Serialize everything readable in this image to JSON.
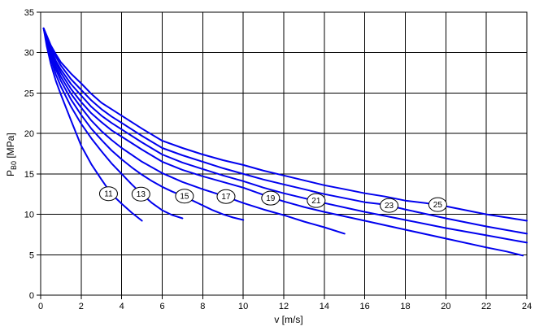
{
  "axes": {
    "x_title": "v [m/s]",
    "y_title_main": "P",
    "y_title_sub": "B0",
    "y_title_unit": "[MPa]"
  },
  "chart_data": {
    "type": "line",
    "title": "",
    "xlabel": "v [m/s]",
    "ylabel": "P_B0 [MPa]",
    "xlim": [
      0,
      24
    ],
    "ylim": [
      0,
      35
    ],
    "xticks": [
      0,
      2,
      4,
      6,
      8,
      10,
      12,
      14,
      16,
      18,
      20,
      22,
      24
    ],
    "yticks": [
      0,
      5,
      10,
      15,
      20,
      25,
      30,
      35
    ],
    "grid": true,
    "legend_position": "none",
    "line_color": "#0000ee",
    "grid_color": "#000000",
    "label_circle_fill": "#ffffff",
    "series": [
      {
        "name": "11",
        "label_pos": [
          3.35,
          12.55
        ],
        "points": [
          [
            0.15,
            33
          ],
          [
            0.3,
            30.8
          ],
          [
            0.5,
            28.6
          ],
          [
            0.75,
            26.5
          ],
          [
            1,
            24.8
          ],
          [
            1.5,
            21.6
          ],
          [
            2,
            18.5
          ],
          [
            2.5,
            16.2
          ],
          [
            3,
            14.3
          ],
          [
            3.5,
            12.5
          ],
          [
            4,
            11.3
          ],
          [
            4.5,
            10.2
          ],
          [
            5,
            9.2
          ]
        ]
      },
      {
        "name": "13",
        "label_pos": [
          4.95,
          12.5
        ],
        "points": [
          [
            0.15,
            33
          ],
          [
            0.3,
            31.2
          ],
          [
            0.5,
            29.2
          ],
          [
            0.75,
            27.3
          ],
          [
            1,
            25.8
          ],
          [
            1.5,
            23.3
          ],
          [
            2,
            21.2
          ],
          [
            2.5,
            19.4
          ],
          [
            3,
            17.8
          ],
          [
            3.5,
            16.3
          ],
          [
            4,
            15.0
          ],
          [
            4.5,
            13.7
          ],
          [
            5,
            12.5
          ],
          [
            5.5,
            11.4
          ],
          [
            6,
            10.5
          ],
          [
            6.5,
            9.9
          ],
          [
            7,
            9.5
          ]
        ]
      },
      {
        "name": "15",
        "label_pos": [
          7.1,
          12.25
        ],
        "points": [
          [
            0.15,
            33
          ],
          [
            0.3,
            31.4
          ],
          [
            0.5,
            29.6
          ],
          [
            0.75,
            27.9
          ],
          [
            1,
            26.5
          ],
          [
            1.5,
            24.2
          ],
          [
            2,
            22.3
          ],
          [
            2.5,
            20.6
          ],
          [
            3,
            19.2
          ],
          [
            3.5,
            17.9
          ],
          [
            4,
            16.8
          ],
          [
            4.5,
            15.8
          ],
          [
            5,
            14.9
          ],
          [
            5.5,
            14.1
          ],
          [
            6,
            13.4
          ],
          [
            6.5,
            12.8
          ],
          [
            7,
            12.3
          ],
          [
            7.5,
            11.7
          ],
          [
            8,
            11.1
          ],
          [
            8.5,
            10.5
          ],
          [
            9,
            10.0
          ],
          [
            9.5,
            9.6
          ],
          [
            10,
            9.3
          ]
        ]
      },
      {
        "name": "17",
        "label_pos": [
          9.15,
          12.2
        ],
        "points": [
          [
            0.15,
            33
          ],
          [
            0.3,
            31.6
          ],
          [
            0.5,
            29.9
          ],
          [
            0.75,
            28.3
          ],
          [
            1,
            27.0
          ],
          [
            1.5,
            24.9
          ],
          [
            2,
            23.2
          ],
          [
            2.5,
            21.6
          ],
          [
            3,
            20.3
          ],
          [
            3.5,
            19.2
          ],
          [
            4,
            18.2
          ],
          [
            5,
            16.5
          ],
          [
            6,
            15.1
          ],
          [
            7,
            14.0
          ],
          [
            8,
            13.1
          ],
          [
            9,
            12.3
          ],
          [
            10,
            11.4
          ],
          [
            11,
            10.6
          ],
          [
            12,
            9.9
          ],
          [
            13,
            9.1
          ],
          [
            14,
            8.4
          ],
          [
            15,
            7.6
          ]
        ]
      },
      {
        "name": "19",
        "label_pos": [
          11.35,
          12.0
        ],
        "points": [
          [
            0.15,
            33
          ],
          [
            0.3,
            31.8
          ],
          [
            0.5,
            30.2
          ],
          [
            0.75,
            28.7
          ],
          [
            1,
            27.5
          ],
          [
            1.5,
            25.5
          ],
          [
            2,
            23.9
          ],
          [
            2.5,
            22.5
          ],
          [
            3,
            21.4
          ],
          [
            3.5,
            20.4
          ],
          [
            4,
            19.6
          ],
          [
            5,
            18.0
          ],
          [
            6,
            16.5
          ],
          [
            7,
            15.5
          ],
          [
            8,
            14.7
          ],
          [
            9,
            14.0
          ],
          [
            10,
            13.3
          ],
          [
            11,
            12.4
          ],
          [
            12,
            11.6
          ],
          [
            13,
            10.9
          ],
          [
            14,
            10.3
          ],
          [
            16,
            9.2
          ],
          [
            18,
            8.1
          ],
          [
            20,
            7.0
          ],
          [
            22,
            5.9
          ],
          [
            23,
            5.4
          ],
          [
            23.8,
            4.9
          ]
        ]
      },
      {
        "name": "21",
        "label_pos": [
          13.6,
          11.7
        ],
        "points": [
          [
            0.15,
            33
          ],
          [
            0.3,
            31.9
          ],
          [
            0.5,
            30.4
          ],
          [
            0.75,
            29.0
          ],
          [
            1,
            27.9
          ],
          [
            1.5,
            26.1
          ],
          [
            2,
            24.7
          ],
          [
            2.5,
            23.3
          ],
          [
            3,
            22.2
          ],
          [
            3.5,
            21.3
          ],
          [
            4,
            20.5
          ],
          [
            5,
            18.9
          ],
          [
            6,
            17.4
          ],
          [
            7,
            16.4
          ],
          [
            8,
            15.6
          ],
          [
            9,
            14.8
          ],
          [
            10,
            14.1
          ],
          [
            11,
            13.3
          ],
          [
            12,
            12.6
          ],
          [
            13,
            12.0
          ],
          [
            14,
            11.4
          ],
          [
            16,
            10.3
          ],
          [
            18,
            9.3
          ],
          [
            20,
            8.3
          ],
          [
            22,
            7.4
          ],
          [
            24,
            6.5
          ]
        ]
      },
      {
        "name": "23",
        "label_pos": [
          17.2,
          11.1
        ],
        "points": [
          [
            0.15,
            33
          ],
          [
            0.3,
            32.0
          ],
          [
            0.5,
            30.7
          ],
          [
            0.75,
            29.5
          ],
          [
            1,
            28.4
          ],
          [
            1.5,
            26.7
          ],
          [
            2,
            25.4
          ],
          [
            2.5,
            24.1
          ],
          [
            3,
            23.0
          ],
          [
            3.5,
            22.1
          ],
          [
            4,
            21.3
          ],
          [
            5,
            19.7
          ],
          [
            6,
            18.2
          ],
          [
            7,
            17.3
          ],
          [
            8,
            16.5
          ],
          [
            9,
            15.7
          ],
          [
            10,
            15.0
          ],
          [
            11,
            14.3
          ],
          [
            12,
            13.7
          ],
          [
            13,
            13.1
          ],
          [
            14,
            12.5
          ],
          [
            15,
            12.0
          ],
          [
            16,
            11.5
          ],
          [
            17,
            11.2
          ],
          [
            18,
            10.6
          ],
          [
            20,
            9.5
          ],
          [
            22,
            8.5
          ],
          [
            24,
            7.6
          ]
        ]
      },
      {
        "name": "25",
        "label_pos": [
          19.6,
          11.2
        ],
        "points": [
          [
            0.15,
            33
          ],
          [
            0.3,
            32.1
          ],
          [
            0.5,
            30.9
          ],
          [
            0.75,
            29.8
          ],
          [
            1,
            28.8
          ],
          [
            1.5,
            27.4
          ],
          [
            2,
            26.2
          ],
          [
            2.5,
            24.9
          ],
          [
            3,
            23.8
          ],
          [
            3.5,
            23.0
          ],
          [
            4,
            22.2
          ],
          [
            5,
            20.6
          ],
          [
            6,
            19.1
          ],
          [
            7,
            18.2
          ],
          [
            8,
            17.4
          ],
          [
            9,
            16.7
          ],
          [
            10,
            16.1
          ],
          [
            11,
            15.4
          ],
          [
            12,
            14.8
          ],
          [
            13,
            14.2
          ],
          [
            14,
            13.6
          ],
          [
            15,
            13.1
          ],
          [
            16,
            12.6
          ],
          [
            17,
            12.2
          ],
          [
            18,
            11.7
          ],
          [
            19,
            11.4
          ],
          [
            20,
            11.0
          ],
          [
            21,
            10.5
          ],
          [
            22,
            10.0
          ],
          [
            23,
            9.6
          ],
          [
            24,
            9.2
          ]
        ]
      }
    ]
  }
}
